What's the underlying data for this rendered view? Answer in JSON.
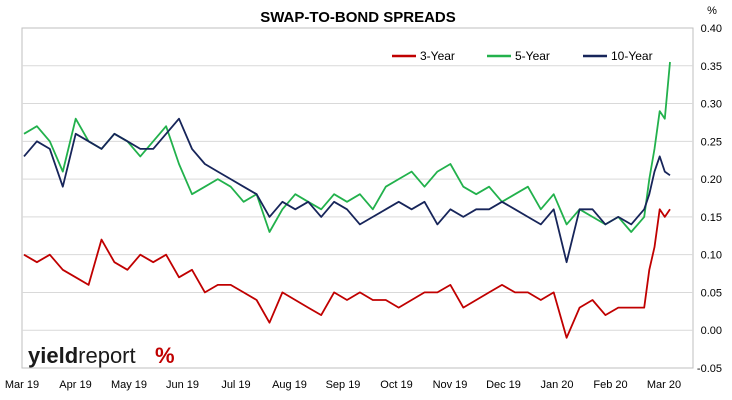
{
  "chart_data": {
    "type": "line",
    "title": "SWAP-TO-BOND SPREADS",
    "ylabel_unit": "%",
    "ylim": [
      -0.05,
      0.4
    ],
    "yticks": [
      "-0.05",
      "0.00",
      "0.05",
      "0.10",
      "0.15",
      "0.20",
      "0.25",
      "0.30",
      "0.35",
      "0.40"
    ],
    "ytick_values": [
      -0.05,
      0.0,
      0.05,
      0.1,
      0.15,
      0.2,
      0.25,
      0.3,
      0.35,
      0.4
    ],
    "xticks": [
      "Mar 19",
      "Apr 19",
      "May 19",
      "Jun 19",
      "Jul 19",
      "Aug 19",
      "Sep 19",
      "Oct 19",
      "Nov 19",
      "Dec 19",
      "Jan 20",
      "Feb 20",
      "Mar 20"
    ],
    "grid": "horizontal",
    "legend_position": "top-right",
    "x": [
      0,
      0.25,
      0.5,
      0.75,
      1,
      1.25,
      1.5,
      1.75,
      2,
      2.25,
      2.5,
      2.75,
      3,
      3.25,
      3.5,
      3.75,
      4,
      4.25,
      4.5,
      4.75,
      5,
      5.25,
      5.5,
      5.75,
      6,
      6.25,
      6.5,
      6.75,
      7,
      7.25,
      7.5,
      7.75,
      8,
      8.25,
      8.5,
      8.75,
      9,
      9.25,
      9.5,
      9.75,
      10,
      10.25,
      10.5,
      10.75,
      11,
      11.25,
      11.5,
      11.75,
      12,
      12.1,
      12.2,
      12.3,
      12.4,
      12.5
    ],
    "series": [
      {
        "name": "3-Year",
        "color": "#c00000",
        "values": [
          0.1,
          0.09,
          0.1,
          0.08,
          0.07,
          0.06,
          0.12,
          0.09,
          0.08,
          0.1,
          0.09,
          0.1,
          0.07,
          0.08,
          0.05,
          0.06,
          0.06,
          0.05,
          0.04,
          0.01,
          0.05,
          0.04,
          0.03,
          0.02,
          0.05,
          0.04,
          0.05,
          0.04,
          0.04,
          0.03,
          0.04,
          0.05,
          0.05,
          0.06,
          0.03,
          0.04,
          0.05,
          0.06,
          0.05,
          0.05,
          0.04,
          0.05,
          -0.01,
          0.03,
          0.04,
          0.02,
          0.03,
          0.03,
          0.03,
          0.08,
          0.11,
          0.16,
          0.15,
          0.16
        ]
      },
      {
        "name": "5-Year",
        "color": "#22b14c",
        "values": [
          0.26,
          0.27,
          0.25,
          0.21,
          0.28,
          0.25,
          0.24,
          0.26,
          0.25,
          0.23,
          0.25,
          0.27,
          0.22,
          0.18,
          0.19,
          0.2,
          0.19,
          0.17,
          0.18,
          0.13,
          0.16,
          0.18,
          0.17,
          0.16,
          0.18,
          0.17,
          0.18,
          0.16,
          0.19,
          0.2,
          0.21,
          0.19,
          0.21,
          0.22,
          0.19,
          0.18,
          0.19,
          0.17,
          0.18,
          0.19,
          0.16,
          0.18,
          0.14,
          0.16,
          0.15,
          0.14,
          0.15,
          0.13,
          0.15,
          0.2,
          0.24,
          0.29,
          0.28,
          0.355
        ]
      },
      {
        "name": "10-Year",
        "color": "#17255a",
        "values": [
          0.23,
          0.25,
          0.24,
          0.19,
          0.26,
          0.25,
          0.24,
          0.26,
          0.25,
          0.24,
          0.24,
          0.26,
          0.28,
          0.24,
          0.22,
          0.21,
          0.2,
          0.19,
          0.18,
          0.15,
          0.17,
          0.16,
          0.17,
          0.15,
          0.17,
          0.16,
          0.14,
          0.15,
          0.16,
          0.17,
          0.16,
          0.17,
          0.14,
          0.16,
          0.15,
          0.16,
          0.16,
          0.17,
          0.16,
          0.15,
          0.14,
          0.16,
          0.09,
          0.16,
          0.16,
          0.14,
          0.15,
          0.14,
          0.16,
          0.18,
          0.21,
          0.23,
          0.21,
          0.205
        ]
      }
    ]
  },
  "brand": {
    "name_bold": "yield",
    "name_light": "report",
    "mark": "%",
    "mark_color": "#c00000"
  }
}
